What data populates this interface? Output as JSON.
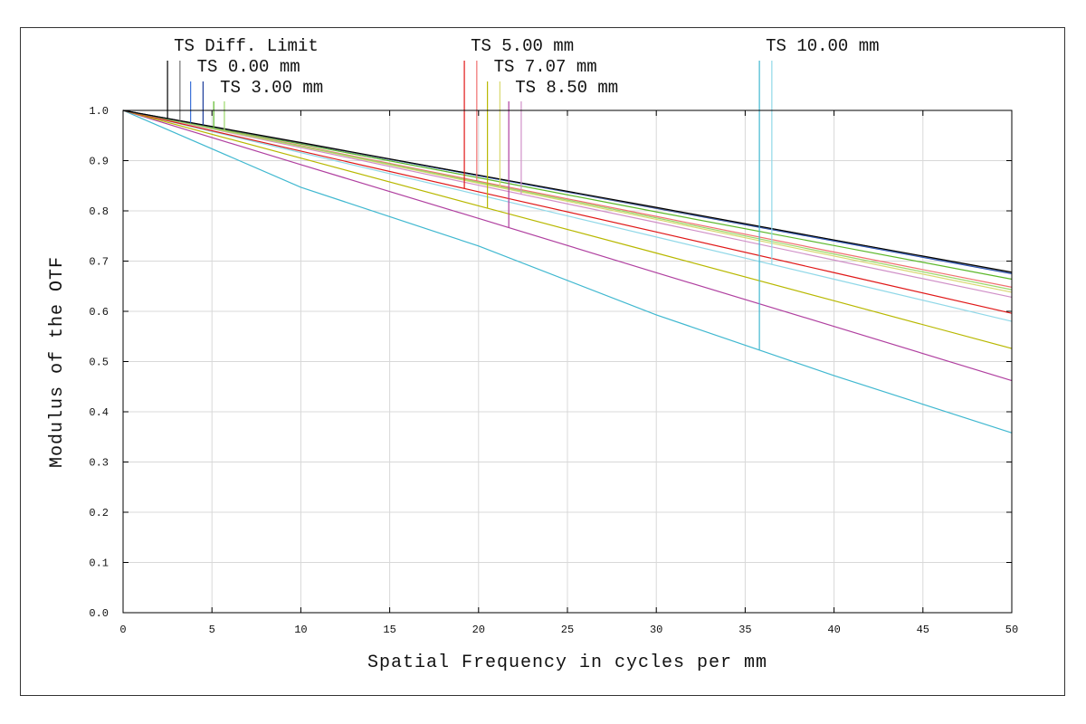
{
  "chart_data": {
    "type": "line",
    "xlabel": "Spatial Frequency in cycles per mm",
    "ylabel": "Modulus of the OTF",
    "xlim": [
      0,
      50
    ],
    "ylim": [
      0,
      1.0
    ],
    "grid": true,
    "x_ticks": [
      "0",
      "5",
      "10",
      "15",
      "20",
      "25",
      "30",
      "35",
      "40",
      "45",
      "50"
    ],
    "y_ticks": [
      "0.0",
      "0.1",
      "0.2",
      "0.3",
      "0.4",
      "0.5",
      "0.6",
      "0.7",
      "0.8",
      "0.9",
      "1.0"
    ],
    "x": [
      0,
      10,
      20,
      30,
      40,
      50
    ],
    "series": [
      {
        "name": "Diff. Limit T",
        "color": "#000000",
        "values": [
          1,
          0.936,
          0.871,
          0.807,
          0.742,
          0.678
        ]
      },
      {
        "name": "Diff. Limit S",
        "color": "#707070",
        "values": [
          1,
          0.935,
          0.871,
          0.806,
          0.742,
          0.677
        ]
      },
      {
        "name": "0.00 mm T",
        "color": "#3a6fd8",
        "values": [
          1,
          0.935,
          0.87,
          0.806,
          0.741,
          0.676
        ]
      },
      {
        "name": "0.00 mm S",
        "color": "#1a3a9a",
        "values": [
          1,
          0.935,
          0.87,
          0.805,
          0.74,
          0.675
        ]
      },
      {
        "name": "3.00 mm T",
        "color": "#5cb82a",
        "values": [
          1,
          0.933,
          0.866,
          0.798,
          0.731,
          0.664
        ]
      },
      {
        "name": "3.00 mm S",
        "color": "#9bd86a",
        "values": [
          1,
          0.929,
          0.857,
          0.786,
          0.714,
          0.643
        ]
      },
      {
        "name": "5.00 mm T",
        "color": "#e01818",
        "values": [
          1,
          0.919,
          0.838,
          0.758,
          0.677,
          0.596
        ]
      },
      {
        "name": "5.00 mm S",
        "color": "#f07070",
        "values": [
          1,
          0.93,
          0.859,
          0.789,
          0.718,
          0.648
        ]
      },
      {
        "name": "7.07 mm T",
        "color": "#b8b800",
        "values": [
          1,
          0.905,
          0.81,
          0.716,
          0.621,
          0.526
        ]
      },
      {
        "name": "7.07 mm S",
        "color": "#d8d870",
        "values": [
          1,
          0.928,
          0.855,
          0.783,
          0.71,
          0.638
        ]
      },
      {
        "name": "8.50 mm T",
        "color": "#b040a0",
        "values": [
          1,
          0.892,
          0.785,
          0.677,
          0.57,
          0.462
        ]
      },
      {
        "name": "8.50 mm S",
        "color": "#d090c8",
        "values": [
          1,
          0.926,
          0.851,
          0.777,
          0.702,
          0.628
        ]
      },
      {
        "name": "10.00 mm T",
        "color": "#40b8d0",
        "values": [
          1,
          0.847,
          0.73,
          0.593,
          0.472,
          0.358
        ]
      },
      {
        "name": "10.00 mm S",
        "color": "#90d8e8",
        "values": [
          1,
          0.916,
          0.832,
          0.748,
          0.664,
          0.58
        ]
      }
    ],
    "legend": [
      {
        "label": "TS Diff. Limit",
        "series": [
          0,
          1
        ],
        "marker_x": [
          2.5,
          3.2
        ],
        "row": 0
      },
      {
        "label": "TS 0.00 mm",
        "series": [
          2,
          3
        ],
        "marker_x": [
          3.8,
          4.5
        ],
        "row": 1
      },
      {
        "label": "TS 3.00 mm",
        "series": [
          4,
          5
        ],
        "marker_x": [
          5.1,
          5.7
        ],
        "row": 2
      },
      {
        "label": "TS 5.00 mm",
        "series": [
          6,
          7
        ],
        "marker_x": [
          19.2,
          19.9
        ],
        "row": 0
      },
      {
        "label": "TS 7.07 mm",
        "series": [
          8,
          9
        ],
        "marker_x": [
          20.5,
          21.2
        ],
        "row": 1
      },
      {
        "label": "TS 8.50 mm",
        "series": [
          10,
          11
        ],
        "marker_x": [
          21.7,
          22.4
        ],
        "row": 2
      },
      {
        "label": "TS 10.00 mm",
        "series": [
          12,
          13
        ],
        "marker_x": [
          35.8,
          36.5
        ],
        "row": 0
      }
    ],
    "legend_placement": "top"
  }
}
